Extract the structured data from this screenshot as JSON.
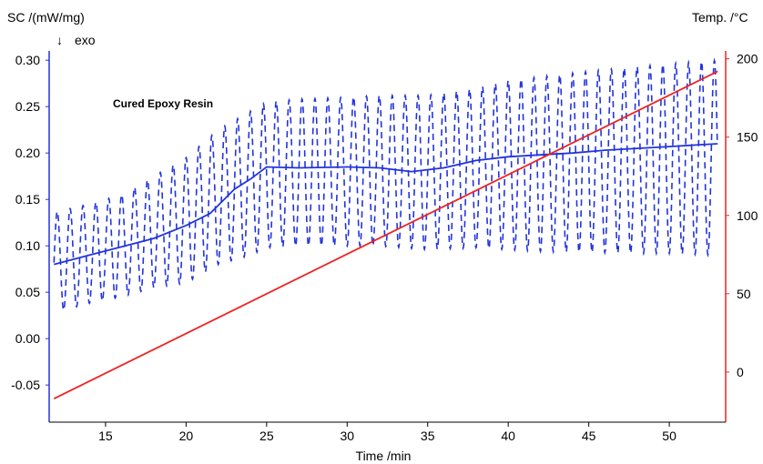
{
  "chart_data": {
    "type": "line",
    "xlabel": "Time /min",
    "ylabel_left": "SC /(mW/mg)",
    "ylabel_left_sub": "exo",
    "exo_arrow": "↓",
    "ylabel_right": "Temp. /°C",
    "annotation": "Cured Epoxy Resin",
    "xlim": [
      11.5,
      53.5
    ],
    "ylim_left": [
      -0.09,
      0.31
    ],
    "ylim_right": [
      -32,
      205
    ],
    "x_ticks": [
      "15",
      "20",
      "25",
      "30",
      "35",
      "40",
      "45",
      "50"
    ],
    "y_left_ticks": [
      "0.30",
      "0.25",
      "0.20",
      "0.15",
      "0.10",
      "0.05",
      "0.00",
      "-0.05"
    ],
    "y_left_tick_values": [
      0.3,
      0.25,
      0.2,
      0.15,
      0.1,
      0.05,
      0.0,
      -0.05
    ],
    "y_right_ticks": [
      "200",
      "150",
      "100",
      "50",
      "0"
    ],
    "y_right_tick_values": [
      200,
      150,
      100,
      50,
      0
    ],
    "colors": {
      "sc": "#2233dd",
      "temp": "#ee2222",
      "left_axis": "#2233dd",
      "right_axis": "#ee2222"
    },
    "series": [
      {
        "axis": "left",
        "style": "solid",
        "x": [
          11.8,
          14,
          16,
          18,
          20,
          21.5,
          23,
          24,
          25,
          27,
          30,
          32,
          34,
          36,
          38,
          40,
          42,
          44,
          46,
          48,
          50,
          52,
          53
        ],
        "y": [
          0.08,
          0.09,
          0.099,
          0.108,
          0.122,
          0.135,
          0.161,
          0.172,
          0.185,
          0.184,
          0.185,
          0.184,
          0.18,
          0.184,
          0.192,
          0.196,
          0.198,
          0.2,
          0.203,
          0.205,
          0.207,
          0.209,
          0.21
        ]
      },
      {
        "axis": "left",
        "style": "dashed",
        "modulation_period_min": 0.8,
        "x": [
          11.8,
          14,
          16,
          18,
          20,
          22,
          24,
          25,
          27,
          30,
          32,
          35,
          38,
          40,
          42,
          45,
          48,
          50,
          53
        ],
        "upper": [
          0.136,
          0.145,
          0.155,
          0.175,
          0.195,
          0.225,
          0.245,
          0.255,
          0.258,
          0.26,
          0.262,
          0.262,
          0.27,
          0.278,
          0.282,
          0.288,
          0.293,
          0.296,
          0.3
        ],
        "lower": [
          0.028,
          0.038,
          0.045,
          0.055,
          0.06,
          0.08,
          0.09,
          0.098,
          0.1,
          0.1,
          0.1,
          0.096,
          0.098,
          0.096,
          0.094,
          0.093,
          0.092,
          0.092,
          0.09
        ]
      },
      {
        "axis": "right",
        "style": "solid",
        "x": [
          11.8,
          53
        ],
        "y": [
          -17,
          192
        ]
      }
    ]
  }
}
